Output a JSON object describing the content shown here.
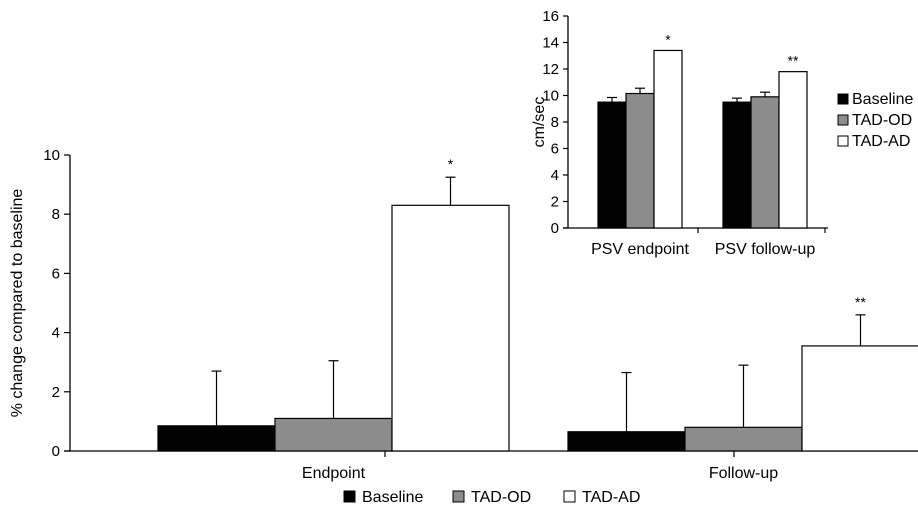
{
  "chart_data": [
    {
      "type": "bar",
      "categories": [
        "Endpoint",
        "Follow-up"
      ],
      "ylabel": "% change compared to baseline",
      "xlabel": "",
      "ylim": [
        0,
        10
      ],
      "yticks": [
        "0",
        "2",
        "4",
        "6",
        "8",
        "10"
      ],
      "series": [
        {
          "name": "Baseline",
          "values": [
            0.85,
            0.65
          ],
          "errors": [
            1.85,
            2.0
          ],
          "color": "#000000",
          "annotations": [
            "",
            ""
          ]
        },
        {
          "name": "TAD-OD",
          "values": [
            1.1,
            0.8
          ],
          "errors": [
            1.95,
            2.1
          ],
          "color": "#8c8c8c",
          "annotations": [
            "",
            ""
          ]
        },
        {
          "name": "TAD-AD",
          "values": [
            8.3,
            3.55
          ],
          "errors": [
            0.95,
            1.05
          ],
          "color": "#ffffff",
          "annotations": [
            "*",
            "**"
          ]
        }
      ],
      "legend": {
        "placement": "bottom",
        "items": [
          "Baseline",
          "TAD-OD",
          "TAD-AD"
        ]
      }
    },
    {
      "type": "bar",
      "categories": [
        "PSV endpoint",
        "PSV follow-up"
      ],
      "ylabel": "cm/sec",
      "xlabel": "",
      "ylim": [
        0,
        16
      ],
      "yticks": [
        "0",
        "2",
        "4",
        "6",
        "8",
        "10",
        "12",
        "14",
        "16"
      ],
      "series": [
        {
          "name": "Baseline",
          "values": [
            9.5,
            9.5
          ],
          "errors": [
            0.35,
            0.3
          ],
          "color": "#000000",
          "annotations": [
            "",
            ""
          ]
        },
        {
          "name": "TAD-OD",
          "values": [
            10.15,
            9.9
          ],
          "errors": [
            0.4,
            0.35
          ],
          "color": "#8c8c8c",
          "annotations": [
            "",
            ""
          ]
        },
        {
          "name": "TAD-AD",
          "values": [
            13.4,
            11.8
          ],
          "errors": [
            0,
            0
          ],
          "color": "#ffffff",
          "annotations": [
            "*",
            "**"
          ]
        }
      ],
      "legend": {
        "placement": "right",
        "items": [
          "Baseline",
          "TAD-OD",
          "TAD-AD"
        ]
      }
    }
  ]
}
